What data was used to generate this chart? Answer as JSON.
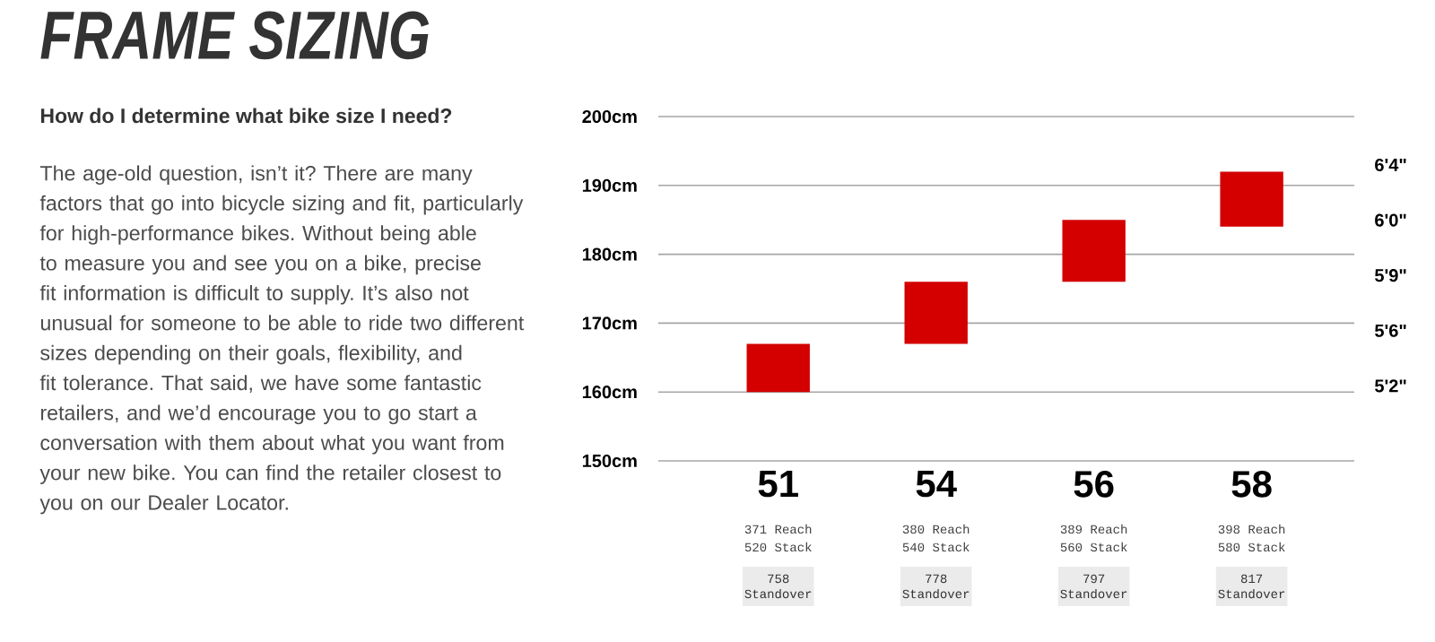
{
  "chart_data": {
    "type": "bar",
    "title": "FRAME SIZING",
    "subtitle": "How do I determine what bike size I need?",
    "categories": [
      "51",
      "54",
      "56",
      "58"
    ],
    "base": [
      160,
      167,
      176,
      184
    ],
    "values": [
      7,
      9,
      9,
      8
    ],
    "color": "#d40000",
    "ylim": [
      150,
      200
    ],
    "yticks": [
      {
        "value": 150,
        "label": "150cm"
      },
      {
        "value": 160,
        "label": "160cm"
      },
      {
        "value": 170,
        "label": "170cm"
      },
      {
        "value": 180,
        "label": "180cm"
      },
      {
        "value": 190,
        "label": "190cm"
      },
      {
        "value": 200,
        "label": "200cm"
      }
    ],
    "grid": "y",
    "annotations": [
      "The age-old question, isn’t it? There are many factors that go into bicycle sizing and fit, particularly for high-performance bikes. Without being able to measure you and see you on a bike, precise fit information is difficult to supply. It’s also not unusual for someone to be able to ride two different sizes depending on their goals, flexibility, and fit tolerance. That said, we have some fantastic retailers, and we’d encourage you to go start a conversation with them about what you want from your new bike. You can find the retailer closest to you on our Dealer Locator.",
      "371 Reach",
      "520 Stack",
      "758",
      "Standover",
      "380 Reach",
      "540 Stack",
      "778",
      "Standover",
      "389 Reach",
      "560 Stack",
      "797",
      "Standover",
      "398 Reach",
      "580 Stack",
      "817",
      "Standover",
      "6'4\"",
      "6'0\"",
      "5'9\"",
      "5'6\"",
      "5'2\""
    ]
  }
}
